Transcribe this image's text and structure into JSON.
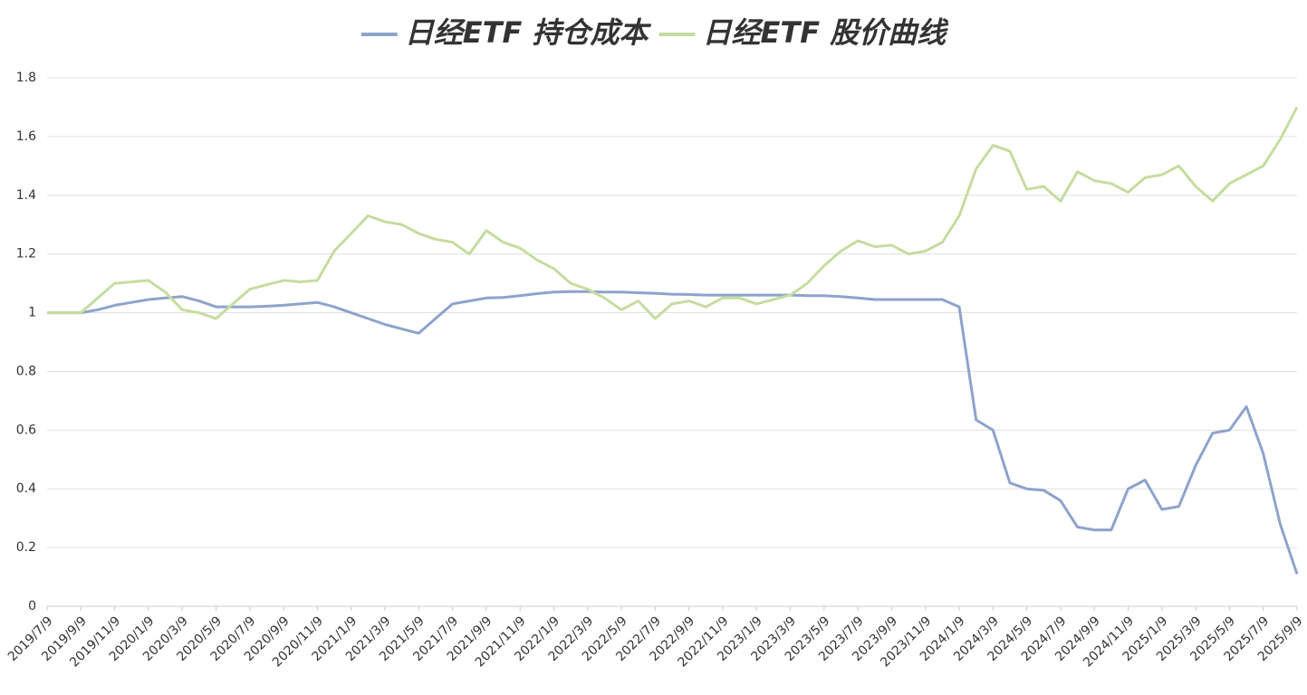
{
  "chart_data": {
    "type": "line",
    "categories": [
      "2019/7/9",
      null,
      "2019/9/9",
      null,
      "2019/11/9",
      null,
      "2020/1/9",
      null,
      "2020/3/9",
      null,
      "2020/5/9",
      null,
      "2020/7/9",
      null,
      "2020/9/9",
      null,
      "2020/11/9",
      null,
      "2021/1/9",
      null,
      "2021/3/9",
      null,
      "2021/5/9",
      null,
      "2021/7/9",
      null,
      "2021/9/9",
      null,
      "2021/11/9",
      null,
      "2022/1/9",
      null,
      "2022/3/9",
      null,
      "2022/5/9",
      null,
      "2022/7/9",
      null,
      "2022/9/9",
      null,
      "2022/11/9",
      null,
      "2023/1/9",
      null,
      "2023/3/9",
      null,
      "2023/5/9",
      null,
      "2023/7/9",
      null,
      "2023/9/9",
      null,
      "2023/11/9",
      null,
      "2024/1/9",
      null,
      "2024/3/9",
      null,
      "2024/5/9",
      null,
      "2024/7/9",
      null,
      "2024/9/9",
      null,
      "2024/11/9",
      null,
      "2025/1/9",
      null,
      "2025/3/9",
      null,
      "2025/5/9",
      null,
      "2025/7/9",
      null,
      "2025/9/9"
    ],
    "series": [
      {
        "name": "日经ETF 持仓成本",
        "color": "#8ea3cc",
        "values": [
          1.0,
          1.0,
          1.0,
          1.01,
          1.025,
          1.035,
          1.045,
          1.05,
          1.055,
          1.04,
          1.02,
          1.02,
          1.02,
          1.022,
          1.025,
          1.03,
          1.035,
          1.02,
          1.0,
          0.98,
          0.96,
          0.945,
          0.93,
          0.98,
          1.03,
          1.04,
          1.05,
          1.052,
          1.058,
          1.065,
          1.07,
          1.072,
          1.072,
          1.07,
          1.07,
          1.068,
          1.066,
          1.063,
          1.062,
          1.06,
          1.06,
          1.06,
          1.06,
          1.06,
          1.06,
          1.058,
          1.058,
          1.055,
          1.05,
          1.045,
          1.045,
          1.045,
          1.045,
          1.045,
          1.02,
          0.635,
          0.6,
          0.42,
          0.4,
          0.395,
          0.36,
          0.27,
          0.26,
          0.26,
          0.4,
          0.43,
          0.33,
          0.34,
          0.48,
          0.59,
          0.6,
          0.68,
          0.52,
          0.28,
          0.11
        ]
      },
      {
        "name": "日经ETF 股价曲线",
        "color": "#c5dca0",
        "values": [
          1.0,
          1.0,
          1.0,
          1.05,
          1.1,
          1.105,
          1.11,
          1.07,
          1.01,
          1.0,
          0.98,
          1.03,
          1.08,
          1.095,
          1.11,
          1.105,
          1.11,
          1.21,
          1.27,
          1.33,
          1.31,
          1.3,
          1.27,
          1.25,
          1.24,
          1.2,
          1.28,
          1.24,
          1.22,
          1.18,
          1.15,
          1.1,
          1.08,
          1.05,
          1.01,
          1.04,
          0.98,
          1.03,
          1.04,
          1.02,
          1.05,
          1.05,
          1.03,
          1.045,
          1.06,
          1.1,
          1.16,
          1.21,
          1.245,
          1.225,
          1.23,
          1.2,
          1.21,
          1.24,
          1.33,
          1.49,
          1.57,
          1.55,
          1.42,
          1.43,
          1.38,
          1.48,
          1.45,
          1.44,
          1.41,
          1.46,
          1.47,
          1.5,
          1.43,
          1.38,
          1.44,
          1.47,
          1.5,
          1.59,
          1.7
        ]
      }
    ],
    "ylim": [
      0,
      1.8
    ],
    "yticks": [
      0,
      0.2,
      0.4,
      0.6,
      0.8,
      1,
      1.2,
      1.4,
      1.6,
      1.8
    ],
    "grid": true,
    "legend": "top"
  }
}
